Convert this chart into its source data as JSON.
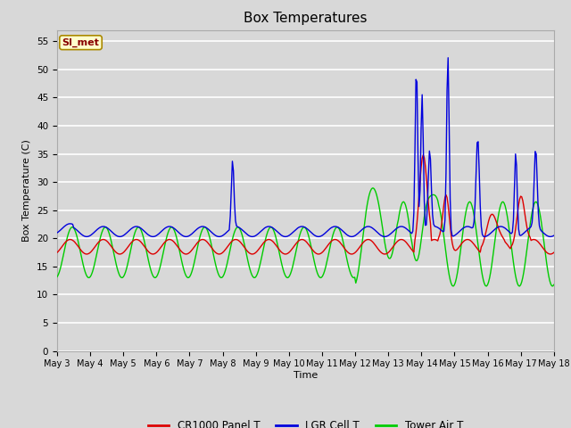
{
  "title": "Box Temperatures",
  "xlabel": "Time",
  "ylabel": "Box Temperature (C)",
  "ylim": [
    0,
    57
  ],
  "yticks": [
    0,
    5,
    10,
    15,
    20,
    25,
    30,
    35,
    40,
    45,
    50,
    55
  ],
  "x_labels": [
    "May 3",
    "May 4",
    "May 5",
    "May 6",
    "May 7",
    "May 8",
    "May 9",
    "May 10",
    "May 11",
    "May 12",
    "May 13",
    "May 14",
    "May 15",
    "May 16",
    "May 17",
    "May 18"
  ],
  "background_color": "#d8d8d8",
  "plot_bg_color": "#d8d8d8",
  "grid_color": "#ffffff",
  "legend_entries": [
    "CR1000 Panel T",
    "LGR Cell T",
    "Tower Air T"
  ],
  "legend_colors": [
    "#dd0000",
    "#0000dd",
    "#00cc00"
  ],
  "watermark_text": "SI_met",
  "watermark_bg": "#ffffcc",
  "watermark_border": "#aa8800",
  "panel_color": "#dd0000",
  "lgr_color": "#0000dd",
  "tower_color": "#00cc00",
  "title_fontsize": 11,
  "figsize": [
    6.4,
    4.8
  ],
  "dpi": 100
}
